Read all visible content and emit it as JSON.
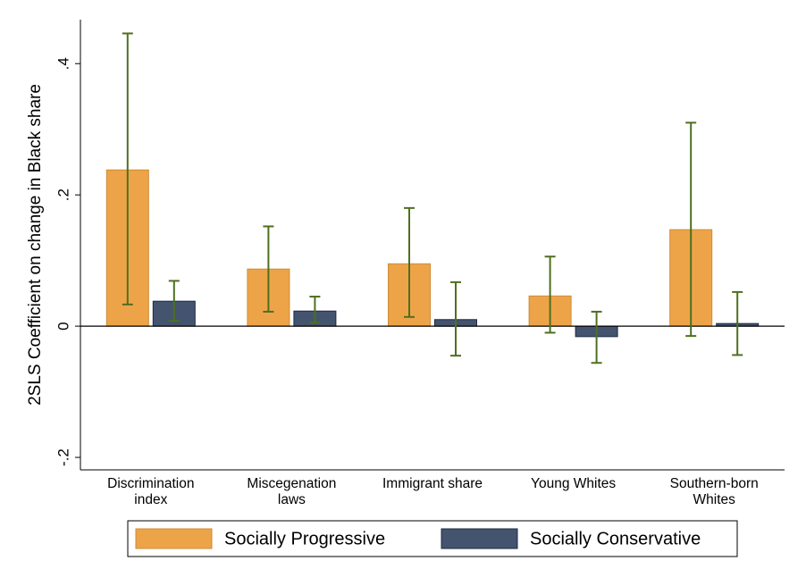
{
  "chart_data": {
    "type": "bar",
    "ylabel": "2SLS Coefficient on change in Black share",
    "categories": [
      "Discrimination\nindex",
      "Miscegenation\nlaws",
      "Immigrant share",
      "Young Whites",
      "Southern-born\nWhites"
    ],
    "series": [
      {
        "name": "Socially Progressive",
        "color": "#eda449",
        "edge": "#d08a34",
        "values": [
          0.238,
          0.087,
          0.095,
          0.046,
          0.147
        ],
        "ci_low": [
          0.033,
          0.022,
          0.014,
          -0.01,
          -0.015
        ],
        "ci_high": [
          0.446,
          0.152,
          0.18,
          0.106,
          0.31
        ]
      },
      {
        "name": "Socially Conservative",
        "color": "#44546f",
        "edge": "#1d2a44",
        "values": [
          0.038,
          0.023,
          0.01,
          -0.016,
          0.004
        ],
        "ci_low": [
          0.008,
          0.005,
          -0.045,
          -0.056,
          -0.044
        ],
        "ci_high": [
          0.069,
          0.045,
          0.067,
          0.022,
          0.052
        ]
      }
    ],
    "errorbar_color": "#4f6f1f",
    "ylim": [
      -0.219,
      0.467
    ],
    "yticks": [
      {
        "value": -0.2,
        "label": "-.2"
      },
      0,
      {
        "value": 0.2,
        "label": ".2"
      },
      {
        "value": 0.4,
        "label": ".4"
      }
    ],
    "legend": "bottom"
  }
}
